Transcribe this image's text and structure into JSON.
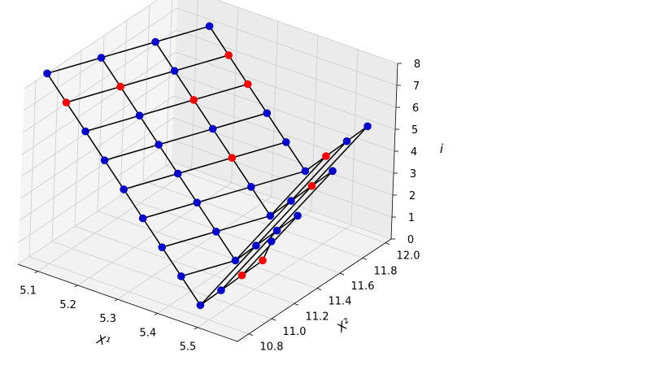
{
  "chart_data": {
    "type": "scatter",
    "subtype": "3d-line-scatter",
    "title": "",
    "xlabel": "X¹",
    "ylabel": "X²",
    "zlabel": "i",
    "xlim": [
      5.05,
      5.6
    ],
    "ylim": [
      10.7,
      12.05
    ],
    "zlim": [
      0,
      8
    ],
    "x_ticks": [
      "5.1",
      "5.2",
      "5.3",
      "5.4",
      "5.5"
    ],
    "y_ticks": [
      "10.8",
      "11.0",
      "11.2",
      "11.4",
      "11.6",
      "11.8",
      "12.0"
    ],
    "z_ticks": [
      "0",
      "1",
      "2",
      "3",
      "4",
      "5",
      "6",
      "7",
      "8"
    ],
    "grid": true,
    "legend": "none",
    "colors": {
      "point_default": "#0000cc",
      "point_highlight": "#ff0000",
      "line": "#000000"
    },
    "series": [
      {
        "points": [
          {
            "x": 5.05,
            "y": 10.9,
            "z": 8,
            "color": "blue"
          },
          {
            "x": 5.1,
            "y": 10.9,
            "z": 7,
            "color": "red"
          },
          {
            "x": 5.15,
            "y": 10.9,
            "z": 6,
            "color": "blue"
          },
          {
            "x": 5.2,
            "y": 10.9,
            "z": 5,
            "color": "blue"
          },
          {
            "x": 5.25,
            "y": 10.9,
            "z": 4,
            "color": "blue"
          },
          {
            "x": 5.3,
            "y": 10.9,
            "z": 3,
            "color": "blue"
          },
          {
            "x": 5.35,
            "y": 10.9,
            "z": 2,
            "color": "blue"
          },
          {
            "x": 5.4,
            "y": 10.9,
            "z": 1,
            "color": "blue"
          },
          {
            "x": 5.45,
            "y": 10.9,
            "z": 0,
            "color": "blue"
          },
          {
            "x": 5.5,
            "y": 10.9,
            "z": 1,
            "color": "blue"
          },
          {
            "x": 5.55,
            "y": 10.9,
            "z": 2,
            "color": "red"
          },
          {
            "x": 5.6,
            "y": 10.9,
            "z": 3,
            "color": "red"
          },
          {
            "x": 5.62,
            "y": 10.9,
            "z": 4,
            "color": "blue"
          }
        ]
      },
      {
        "points": [
          {
            "x": 5.1,
            "y": 11.2,
            "z": 8,
            "color": "blue"
          },
          {
            "x": 5.15,
            "y": 11.2,
            "z": 7,
            "color": "red"
          },
          {
            "x": 5.2,
            "y": 11.2,
            "z": 6,
            "color": "blue"
          },
          {
            "x": 5.25,
            "y": 11.2,
            "z": 5,
            "color": "blue"
          },
          {
            "x": 5.3,
            "y": 11.2,
            "z": 4,
            "color": "blue"
          },
          {
            "x": 5.35,
            "y": 11.2,
            "z": 3,
            "color": "blue"
          },
          {
            "x": 5.4,
            "y": 11.2,
            "z": 2,
            "color": "blue"
          },
          {
            "x": 5.45,
            "y": 11.2,
            "z": 1,
            "color": "blue"
          },
          {
            "x": 5.5,
            "y": 11.2,
            "z": 2,
            "color": "blue"
          },
          {
            "x": 5.55,
            "y": 11.2,
            "z": 3,
            "color": "blue"
          },
          {
            "x": 5.6,
            "y": 11.2,
            "z": 4,
            "color": "blue"
          }
        ]
      },
      {
        "points": [
          {
            "x": 5.15,
            "y": 11.5,
            "z": 8,
            "color": "blue"
          },
          {
            "x": 5.2,
            "y": 11.5,
            "z": 7,
            "color": "blue"
          },
          {
            "x": 5.25,
            "y": 11.5,
            "z": 6,
            "color": "red"
          },
          {
            "x": 5.3,
            "y": 11.5,
            "z": 5,
            "color": "blue"
          },
          {
            "x": 5.35,
            "y": 11.5,
            "z": 4,
            "color": "red"
          },
          {
            "x": 5.4,
            "y": 11.5,
            "z": 3,
            "color": "blue"
          },
          {
            "x": 5.45,
            "y": 11.5,
            "z": 2,
            "color": "blue"
          },
          {
            "x": 5.5,
            "y": 11.5,
            "z": 3,
            "color": "blue"
          },
          {
            "x": 5.55,
            "y": 11.5,
            "z": 4,
            "color": "red"
          },
          {
            "x": 5.6,
            "y": 11.5,
            "z": 5,
            "color": "blue"
          }
        ]
      },
      {
        "points": [
          {
            "x": 5.2,
            "y": 11.8,
            "z": 8,
            "color": "blue"
          },
          {
            "x": 5.25,
            "y": 11.8,
            "z": 7,
            "color": "red"
          },
          {
            "x": 5.3,
            "y": 11.8,
            "z": 6,
            "color": "red"
          },
          {
            "x": 5.35,
            "y": 11.8,
            "z": 5,
            "color": "blue"
          },
          {
            "x": 5.4,
            "y": 11.8,
            "z": 4,
            "color": "blue"
          },
          {
            "x": 5.45,
            "y": 11.8,
            "z": 3,
            "color": "blue"
          },
          {
            "x": 5.5,
            "y": 11.8,
            "z": 4,
            "color": "red"
          },
          {
            "x": 5.55,
            "y": 11.8,
            "z": 5,
            "color": "blue"
          },
          {
            "x": 5.6,
            "y": 11.8,
            "z": 6,
            "color": "blue"
          }
        ]
      }
    ]
  }
}
